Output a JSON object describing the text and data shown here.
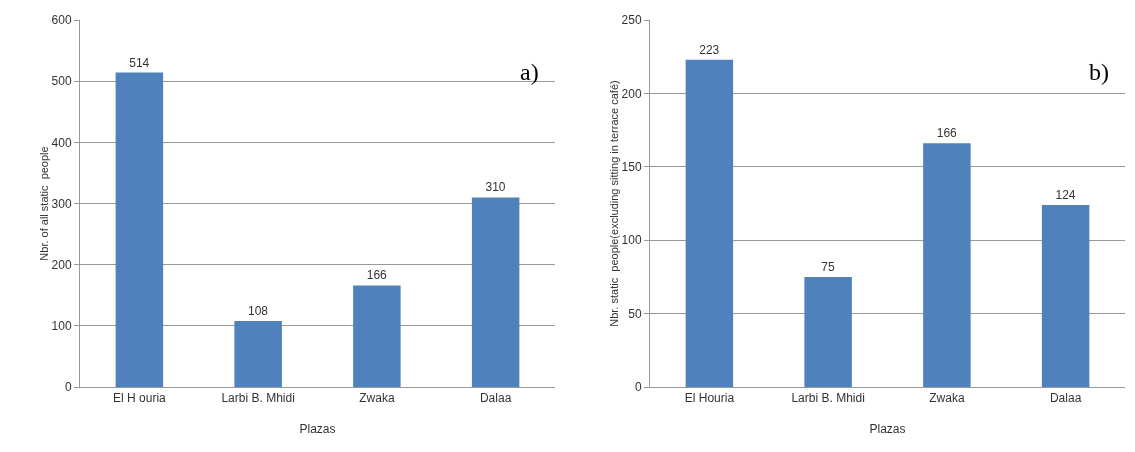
{
  "chart_data": [
    {
      "type": "bar",
      "categories": [
        "El H ouria",
        "Larbi B. Mhidi",
        "Zwaka",
        "Dalaa"
      ],
      "values": [
        514,
        108,
        166,
        310
      ],
      "color": "#4f81bd",
      "xlabel": "Plazas",
      "ylabel": "Nbr. of all static  people",
      "ylim": [
        0,
        600
      ],
      "yticks": [
        0,
        100,
        200,
        300,
        400,
        500,
        600
      ],
      "grid": "y",
      "data_labels": true,
      "annotations": [
        "a)"
      ]
    },
    {
      "type": "bar",
      "categories": [
        "El Houria",
        "Larbi B. Mhidi",
        "Zwaka",
        "Dalaa"
      ],
      "values": [
        223,
        75,
        166,
        124
      ],
      "color": "#4f81bd",
      "xlabel": "Plazas",
      "ylabel": "Nbr. static  people(excluding sitting in terrace café)",
      "ylim": [
        0,
        250
      ],
      "yticks": [
        0,
        50,
        100,
        150,
        200,
        250
      ],
      "grid": "y",
      "data_labels": true,
      "annotations": [
        "b)"
      ]
    }
  ]
}
